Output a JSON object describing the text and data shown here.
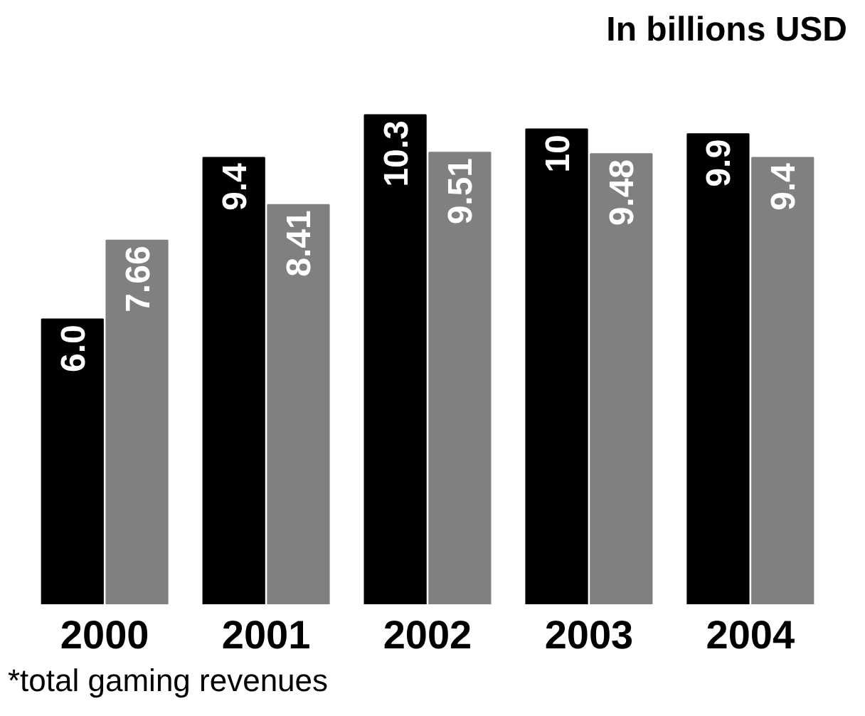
{
  "chart_data": {
    "type": "bar",
    "title": "In billions USD",
    "categories": [
      "2000",
      "2001",
      "2002",
      "2003",
      "2004"
    ],
    "series": [
      {
        "color": "#000000",
        "values": [
          6.0,
          9.4,
          10.3,
          10,
          9.9
        ],
        "value_labels": [
          "6.0",
          "9.4",
          "10.3",
          "10",
          "9.9"
        ]
      },
      {
        "color": "#808080",
        "values": [
          7.66,
          8.41,
          9.51,
          9.48,
          9.4
        ],
        "value_labels": [
          "7.66",
          "8.41",
          "9.51",
          "9.48",
          "9.4"
        ]
      }
    ],
    "annotations": [
      "*total gaming revenues"
    ],
    "grid": false
  }
}
